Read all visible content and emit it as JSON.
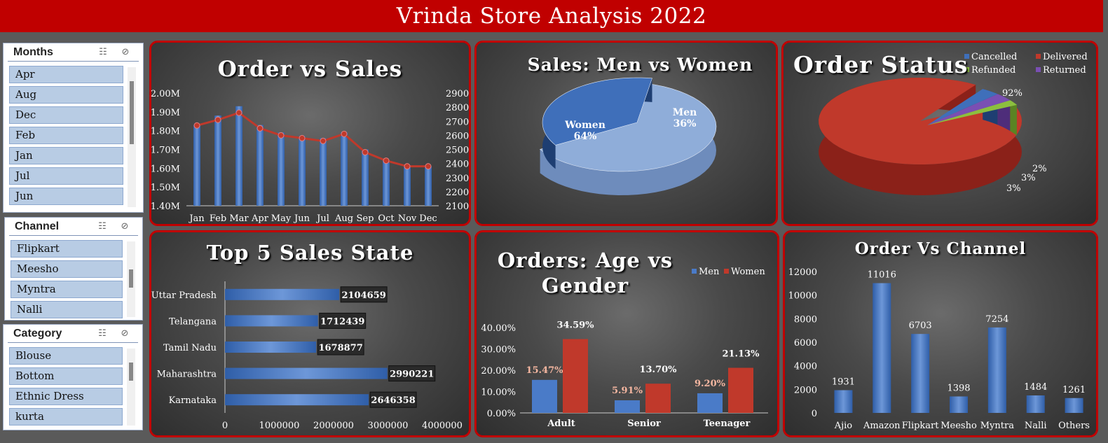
{
  "title": "Vrinda Store Analysis 2022",
  "slicers": [
    {
      "title": "Months",
      "items": [
        "Apr",
        "Aug",
        "Dec",
        "Feb",
        "Jan",
        "Jul",
        "Jun"
      ]
    },
    {
      "title": "Channel",
      "items": [
        "Flipkart",
        "Meesho",
        "Myntra",
        "Nalli"
      ]
    },
    {
      "title": "Category",
      "items": [
        "Blouse",
        "Bottom",
        "Ethnic Dress",
        "kurta"
      ]
    }
  ],
  "icons": [
    "multi-select-icon",
    "clear-filter-icon"
  ],
  "colors": {
    "banner": "#c00000",
    "blue": "#4a7bc8",
    "red": "#c0392b",
    "green": "#8cbf3f",
    "purple": "#7a4fb3",
    "light_blue": "#8fadd9"
  },
  "chart_data": [
    {
      "type": "bar",
      "title": "Order vs Sales",
      "categories": [
        "Jan",
        "Feb",
        "Mar",
        "Apr",
        "May",
        "Jun",
        "Jul",
        "Aug",
        "Sep",
        "Oct",
        "Nov",
        "Dec"
      ],
      "series": [
        {
          "axis": "left",
          "type": "bar",
          "values": [
            1830000,
            1880000,
            1930000,
            1830000,
            1790000,
            1770000,
            1760000,
            1790000,
            1700000,
            1640000,
            1610000,
            1610000
          ]
        },
        {
          "axis": "right",
          "type": "line",
          "values": [
            2670,
            2710,
            2760,
            2650,
            2600,
            2580,
            2560,
            2610,
            2480,
            2420,
            2380,
            2380
          ]
        }
      ],
      "y_left_ticks": [
        "2.00M",
        "1.90M",
        "1.80M",
        "1.70M",
        "1.60M",
        "1.50M",
        "1.40M"
      ],
      "y_right_ticks": [
        "2900",
        "2800",
        "2700",
        "2600",
        "2500",
        "2400",
        "2300",
        "2200",
        "2100"
      ],
      "ylim_left": [
        1400000,
        2000000
      ],
      "ylim_right": [
        2100,
        2900
      ]
    },
    {
      "type": "pie",
      "title": "Sales: Men vs Women",
      "labels": [
        "Women",
        "Men"
      ],
      "values": [
        64,
        36
      ],
      "label_text": [
        "64%",
        "36%"
      ]
    },
    {
      "type": "pie",
      "title": "Order Status",
      "labels": [
        "Delivered",
        "Cancelled",
        "Returned",
        "Refunded"
      ],
      "values": [
        92,
        3,
        3,
        2
      ],
      "label_text": [
        "92%",
        "3%",
        "3%",
        "2%"
      ],
      "legend": [
        "Cancelled",
        "Delivered",
        "Refunded",
        "Returned"
      ],
      "legend_position": "top-right"
    },
    {
      "type": "bar",
      "orientation": "horizontal",
      "title": "Top 5 Sales State",
      "categories": [
        "Uttar Pradesh",
        "Telangana",
        "Tamil Nadu",
        "Maharashtra",
        "Karnataka"
      ],
      "values": [
        2104659,
        1712439,
        1678877,
        2990221,
        2646358
      ],
      "x_ticks": [
        "0",
        "1000000",
        "2000000",
        "3000000",
        "4000000"
      ],
      "xlim": [
        0,
        4000000
      ]
    },
    {
      "type": "bar",
      "title": "Orders: Age vs Gender",
      "categories": [
        "Adult",
        "Senior",
        "Teenager"
      ],
      "series": [
        {
          "name": "Men",
          "values": [
            15.47,
            5.91,
            9.2
          ],
          "labels": [
            "15.47%",
            "5.91%",
            "9.20%"
          ]
        },
        {
          "name": "Women",
          "values": [
            34.59,
            13.7,
            21.13
          ],
          "labels": [
            "34.59%",
            "13.70%",
            "21.13%"
          ]
        }
      ],
      "y_ticks": [
        "40.00%",
        "30.00%",
        "20.00%",
        "10.00%",
        "0.00%"
      ],
      "ylim": [
        0,
        40
      ],
      "legend_position": "top-right"
    },
    {
      "type": "bar",
      "title": "Order Vs Channel",
      "categories": [
        "Ajio",
        "Amazon",
        "Flipkart",
        "Meesho",
        "Myntra",
        "Nalli",
        "Others"
      ],
      "values": [
        1931,
        11016,
        6703,
        1398,
        7254,
        1484,
        1261
      ],
      "y_ticks": [
        "12000",
        "10000",
        "8000",
        "6000",
        "4000",
        "2000",
        "0"
      ],
      "ylim": [
        0,
        12000
      ]
    }
  ]
}
